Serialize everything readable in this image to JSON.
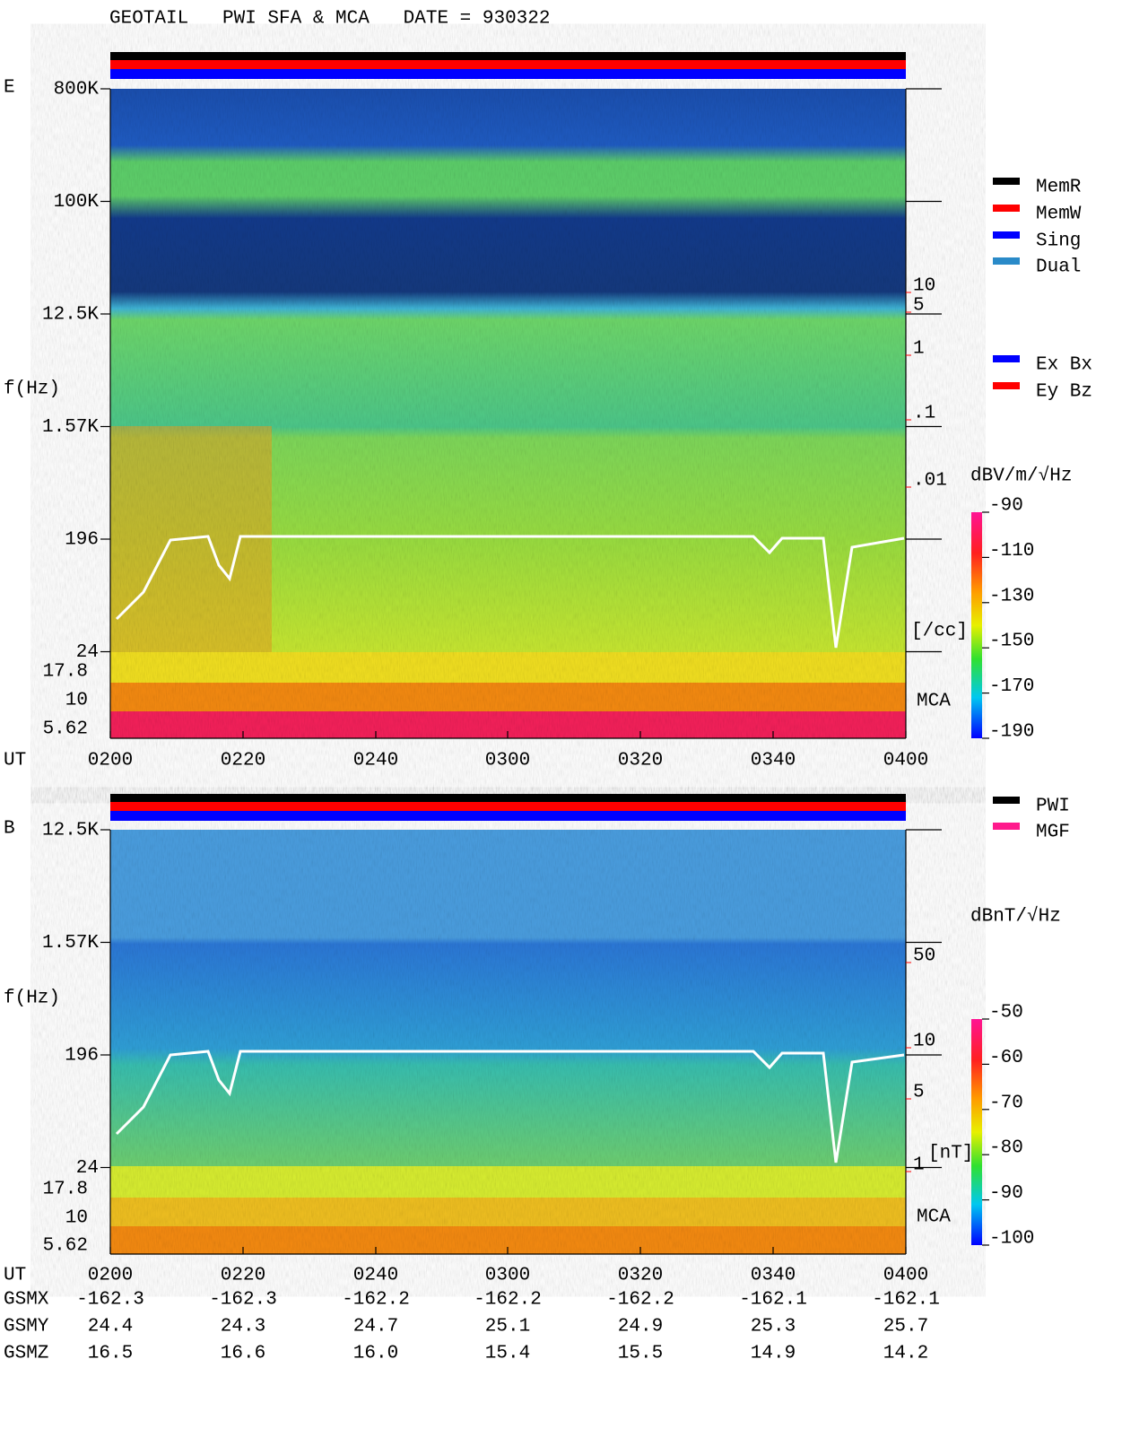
{
  "title": "GEOTAIL   PWI SFA & MCA   DATE = 930322",
  "panels": [
    {
      "label": "E",
      "ylabel": "f(Hz)",
      "freq_ticks": [
        "800K",
        "100K",
        "12.5K",
        "1.57K",
        "196",
        "24"
      ],
      "mca_ticks": [
        "17.8",
        "10",
        "5.62"
      ],
      "mca_label": "MCA",
      "right_ticks": [
        "10",
        "5",
        "1",
        ".1",
        ".01"
      ],
      "right_unit": "[/cc]",
      "xlabel": "UT",
      "xticks": [
        "0200",
        "0220",
        "0240",
        "0300",
        "0320",
        "0340",
        "0400"
      ],
      "colorbar": {
        "unit": "dBV/m/√Hz",
        "ticks": [
          -90,
          -110,
          -130,
          -150,
          -170,
          -190
        ]
      },
      "legend": [
        {
          "name": "MemR",
          "color": "#000000"
        },
        {
          "name": "MemW",
          "color": "#ff0000"
        },
        {
          "name": "Sing",
          "color": "#0000ff"
        },
        {
          "name": "Dual",
          "color": "#2a8ac8"
        }
      ],
      "legend2": [
        {
          "name": "Ex Bx",
          "color": "#0000ff"
        },
        {
          "name": "Ey Bz",
          "color": "#ff0000"
        }
      ]
    },
    {
      "label": "B",
      "ylabel": "f(Hz)",
      "freq_ticks": [
        "12.5K",
        "1.57K",
        "196",
        "24"
      ],
      "mca_ticks": [
        "17.8",
        "10",
        "5.62"
      ],
      "mca_label": "MCA",
      "right_ticks": [
        "50",
        "10",
        "5",
        "1"
      ],
      "right_unit": "[nT]",
      "xlabel": "UT",
      "xticks": [
        "0200",
        "0220",
        "0240",
        "0300",
        "0320",
        "0340",
        "0400"
      ],
      "colorbar": {
        "unit": "dBnT/√Hz",
        "ticks": [
          -50,
          -60,
          -70,
          -80,
          -90,
          -100
        ]
      },
      "legend": [
        {
          "name": "PWI",
          "color": "#000000"
        },
        {
          "name": "MGF",
          "color": "#ff1a8c"
        }
      ]
    }
  ],
  "orbit": {
    "rows": [
      {
        "label": "GSMX",
        "values": [
          "-162.3",
          "-162.3",
          "-162.2",
          "-162.2",
          "-162.2",
          "-162.1",
          "-162.1"
        ]
      },
      {
        "label": "GSMY",
        "values": [
          "24.4",
          "24.3",
          "24.7",
          "25.1",
          "24.9",
          "25.3",
          "25.7"
        ]
      },
      {
        "label": "GSMZ",
        "values": [
          "16.5",
          "16.6",
          "16.0",
          "15.4",
          "15.5",
          "14.9",
          "14.2"
        ]
      }
    ]
  }
}
